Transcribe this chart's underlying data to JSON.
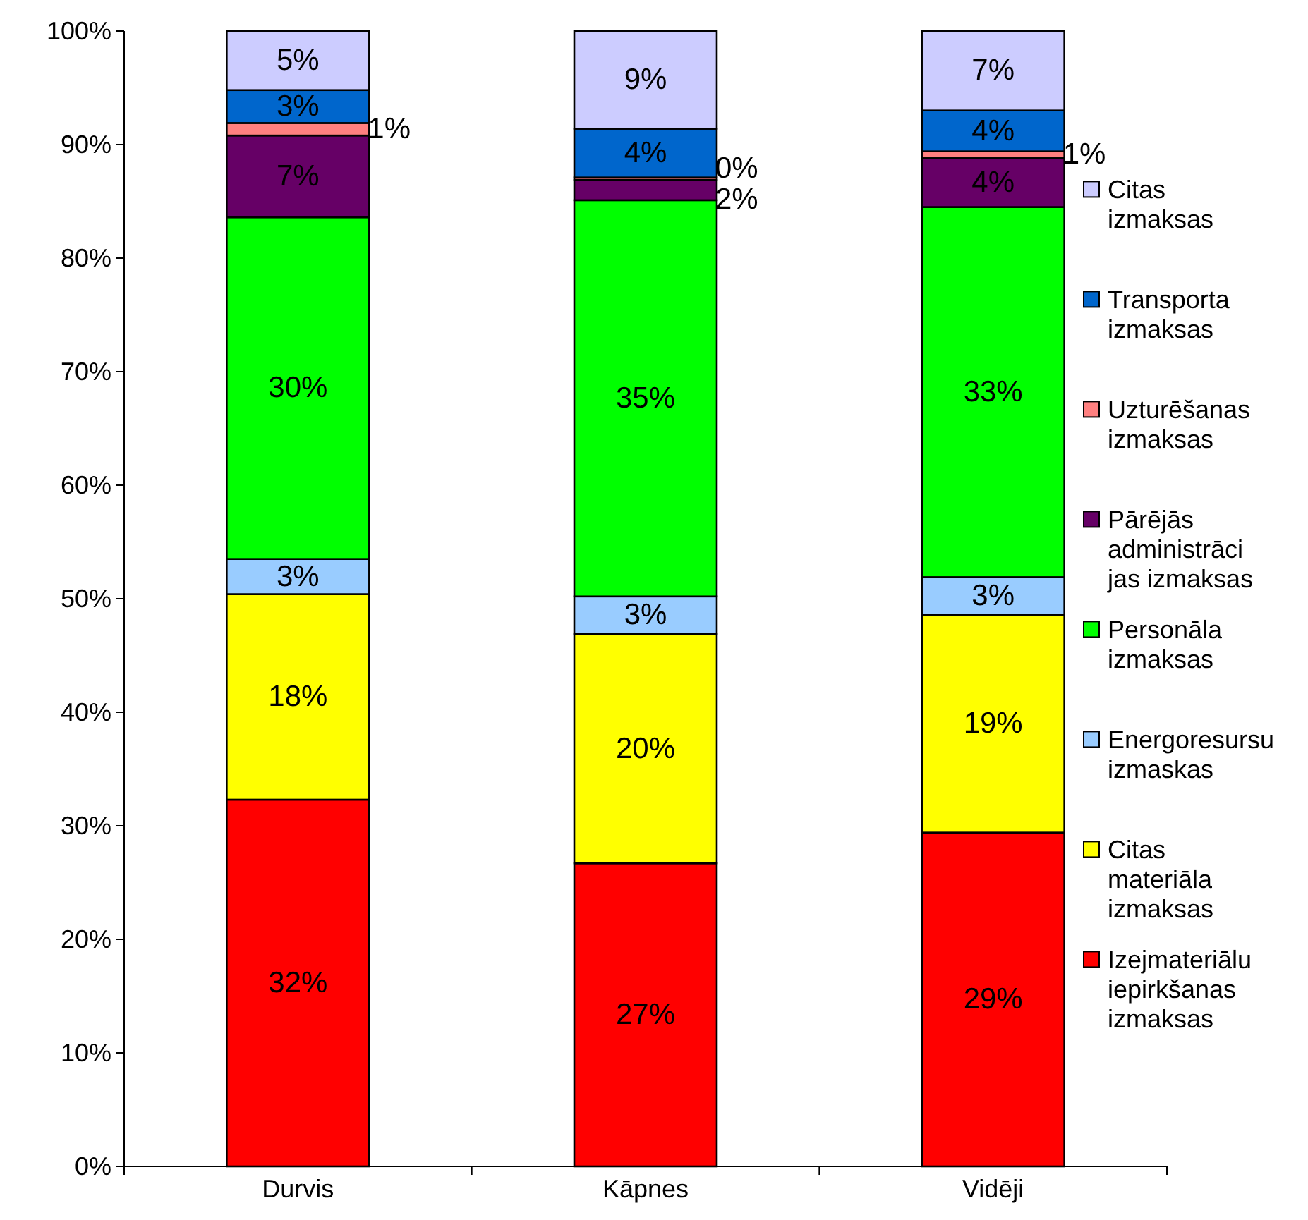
{
  "chart_data": {
    "type": "bar",
    "stacked": true,
    "categories": [
      "Durvis",
      "Kāpnes",
      "Vidēji"
    ],
    "ylim": [
      0,
      100
    ],
    "yticks": [
      {
        "value": 0,
        "label": "0%"
      },
      {
        "value": 10,
        "label": "10%"
      },
      {
        "value": 20,
        "label": "20%"
      },
      {
        "value": 30,
        "label": "30%"
      },
      {
        "value": 40,
        "label": "40%"
      },
      {
        "value": 50,
        "label": "50%"
      },
      {
        "value": 60,
        "label": "60%"
      },
      {
        "value": 70,
        "label": "70%"
      },
      {
        "value": 80,
        "label": "80%"
      },
      {
        "value": 90,
        "label": "90%"
      },
      {
        "value": 100,
        "label": "100%"
      }
    ],
    "grid": false,
    "legend": "right",
    "series": [
      {
        "name": "Izejmateriālu iepirkšanas izmaksas",
        "color": "#ff0000",
        "values": [
          32.3,
          26.7,
          29.4
        ],
        "value_labels": [
          "32%",
          "27%",
          "29%"
        ]
      },
      {
        "name": "Citas materiāla izmaksas",
        "color": "#ffff00",
        "values": [
          18.1,
          20.2,
          19.2
        ],
        "value_labels": [
          "18%",
          "20%",
          "19%"
        ]
      },
      {
        "name": "Energoresursu izmaskas",
        "color": "#99ccff",
        "values": [
          3.1,
          3.3,
          3.3
        ],
        "value_labels": [
          "3%",
          "3%",
          "3%"
        ]
      },
      {
        "name": "Personāla izmaksas",
        "color": "#00ff00",
        "values": [
          30.1,
          34.9,
          32.6
        ],
        "value_labels": [
          "30%",
          "35%",
          "33%"
        ]
      },
      {
        "name": "Pārējās administrācijas izmaksas",
        "color": "#660066",
        "values": [
          7.2,
          1.8,
          4.3
        ],
        "value_labels": [
          "7%",
          "2%",
          "4%"
        ]
      },
      {
        "name": "Uzturēšanas izmaksas",
        "color": "#ff8080",
        "values": [
          1.1,
          0.2,
          0.6
        ],
        "value_labels": [
          "1%",
          "0%",
          "1%"
        ]
      },
      {
        "name": "Transporta izmaksas",
        "color": "#0066cc",
        "values": [
          2.9,
          4.3,
          3.6
        ],
        "value_labels": [
          "3%",
          "4%",
          "4%"
        ]
      },
      {
        "name": "Citas izmaksas",
        "color": "#ccccff",
        "values": [
          5.2,
          8.6,
          7.0
        ],
        "value_labels": [
          "5%",
          "9%",
          "7%"
        ]
      }
    ]
  }
}
